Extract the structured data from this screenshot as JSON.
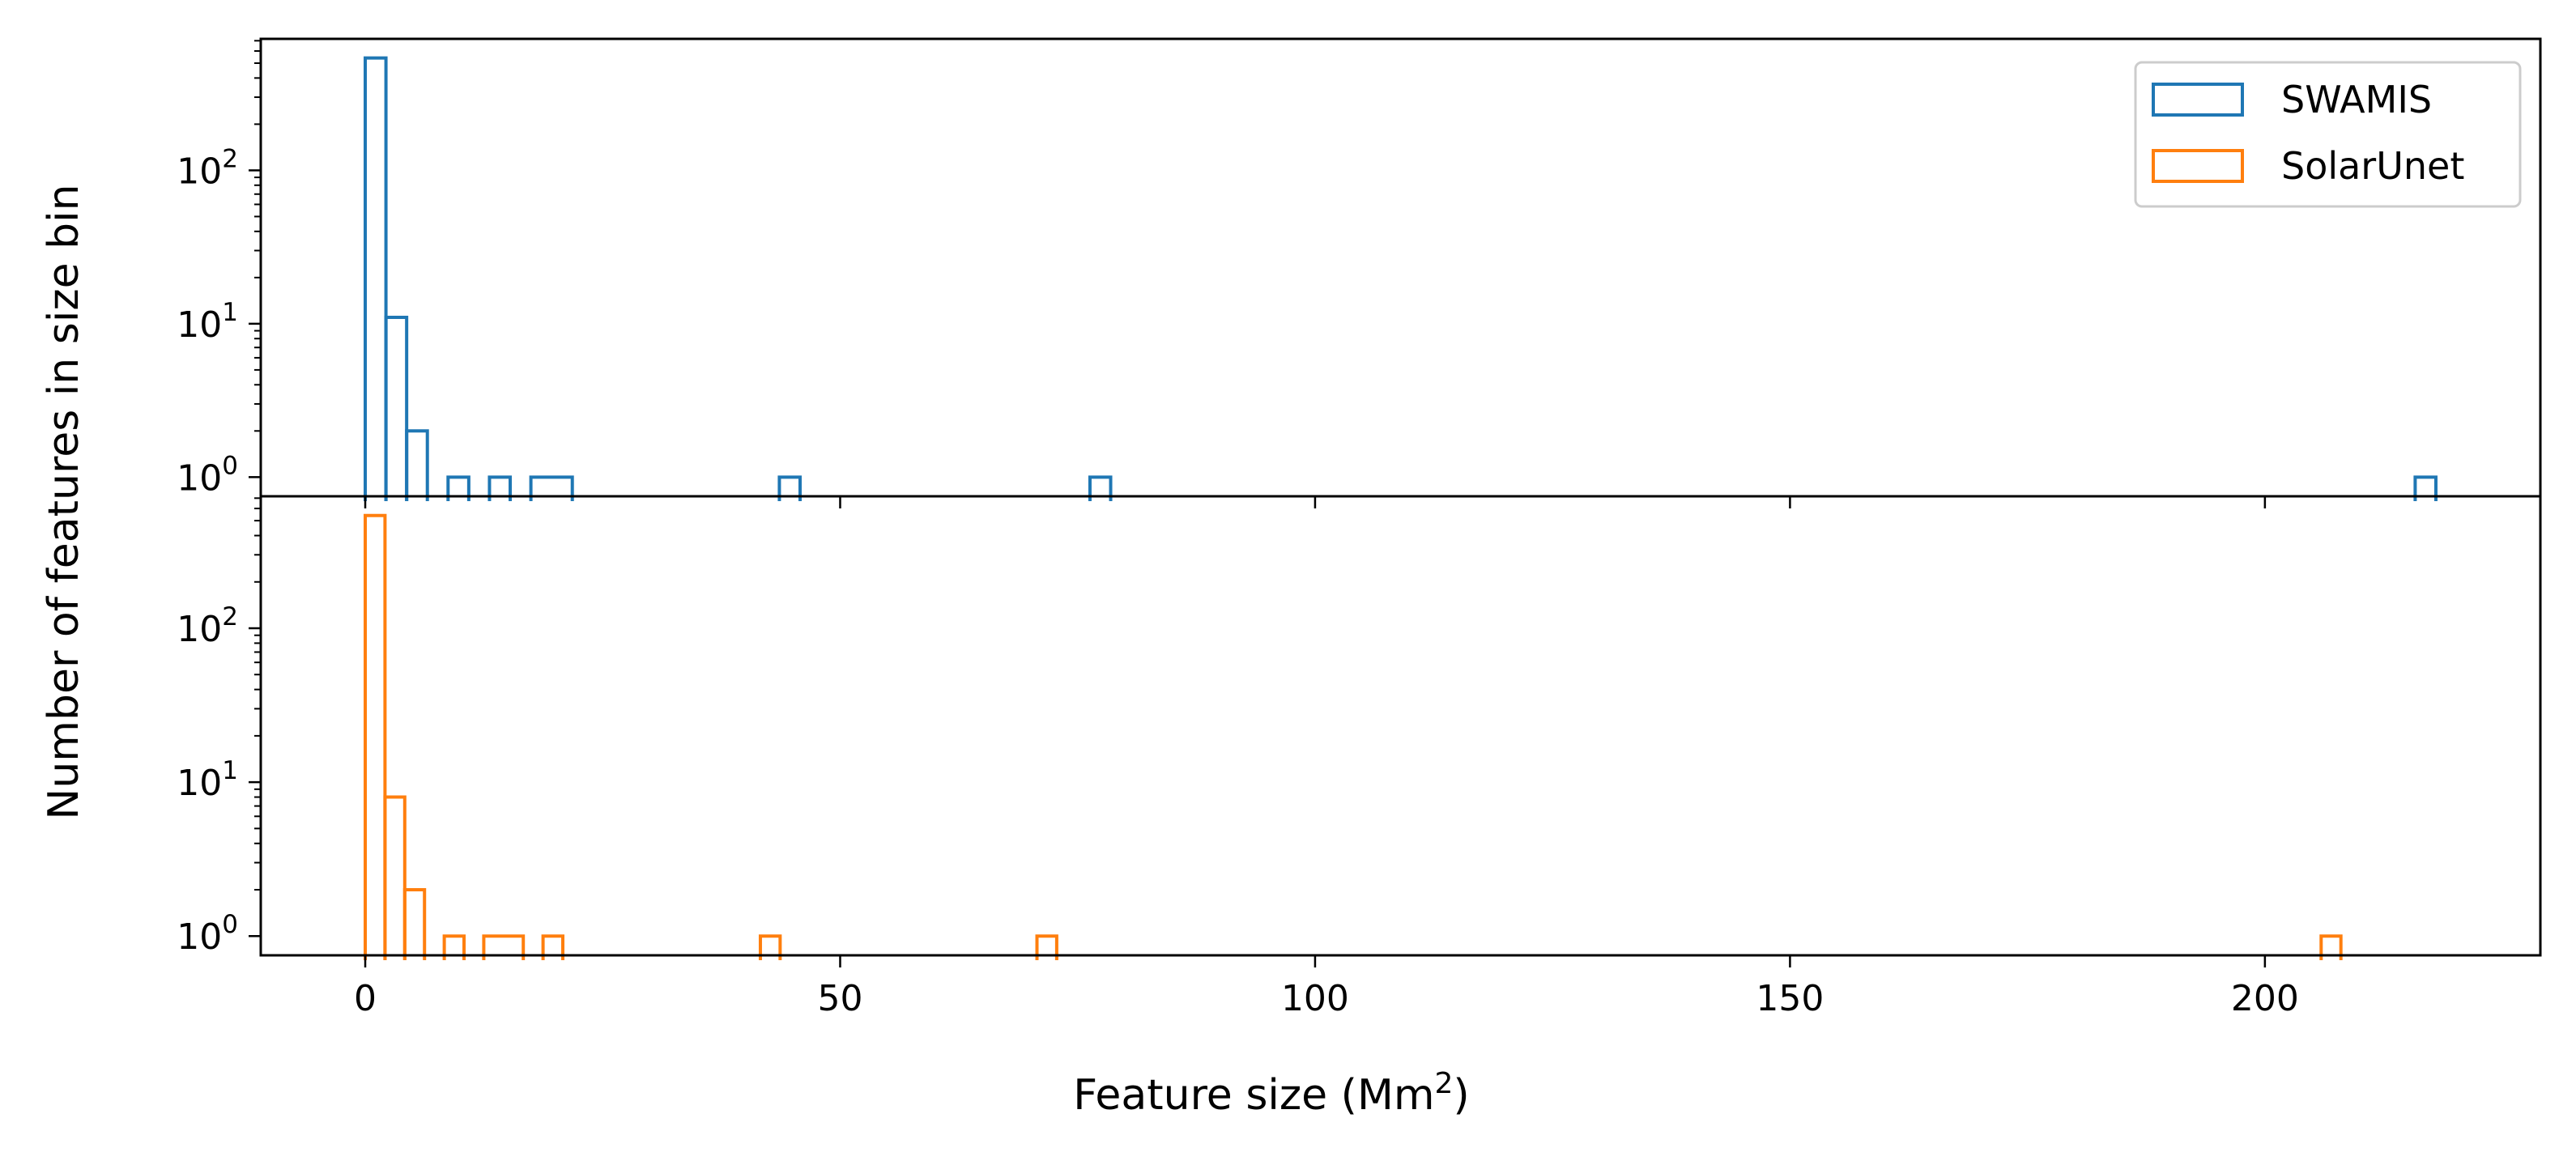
{
  "chart_data": {
    "type": "histogram",
    "layout": "two vertically stacked panels sharing the x axis",
    "xlabel": "Feature size (Mm",
    "xlabel_sup": "2",
    "xlabel_suffix": ")",
    "ylabel": "Number of features in size bin",
    "xlim": [
      -11,
      229
    ],
    "ylim": [
      0.75,
      720
    ],
    "yscale": "log",
    "x_ticks": [
      {
        "value": 0,
        "label": "0"
      },
      {
        "value": 50,
        "label": "50"
      },
      {
        "value": 100,
        "label": "100"
      },
      {
        "value": 150,
        "label": "150"
      },
      {
        "value": 200,
        "label": "200"
      }
    ],
    "y_ticks": [
      {
        "value": 1,
        "base": "10",
        "exp": "0"
      },
      {
        "value": 10,
        "base": "10",
        "exp": "1"
      },
      {
        "value": 100,
        "base": "10",
        "exp": "2"
      }
    ],
    "legend": {
      "placement": "top-right"
    },
    "series": [
      {
        "name": "SWAMIS",
        "color": "#1f77b4",
        "panel": "top",
        "style": "step",
        "bins": [
          {
            "x0": 0.0,
            "x1": 2.18,
            "count": 540
          },
          {
            "x0": 2.18,
            "x1": 4.36,
            "count": 11
          },
          {
            "x0": 4.36,
            "x1": 6.54,
            "count": 2
          },
          {
            "x0": 8.72,
            "x1": 10.9,
            "count": 1
          },
          {
            "x0": 13.08,
            "x1": 15.26,
            "count": 1
          },
          {
            "x0": 17.44,
            "x1": 21.8,
            "count": 1
          },
          {
            "x0": 43.6,
            "x1": 45.78,
            "count": 1
          },
          {
            "x0": 76.3,
            "x1": 78.48,
            "count": 1
          },
          {
            "x0": 215.82,
            "x1": 218.0,
            "count": 1
          }
        ]
      },
      {
        "name": "SolarUnet",
        "color": "#ff7f0e",
        "panel": "bottom",
        "style": "step",
        "bins": [
          {
            "x0": 0.0,
            "x1": 2.08,
            "count": 540
          },
          {
            "x0": 2.08,
            "x1": 4.16,
            "count": 8
          },
          {
            "x0": 4.16,
            "x1": 6.24,
            "count": 2
          },
          {
            "x0": 8.32,
            "x1": 10.4,
            "count": 1
          },
          {
            "x0": 12.48,
            "x1": 16.64,
            "count": 1
          },
          {
            "x0": 18.72,
            "x1": 20.8,
            "count": 1
          },
          {
            "x0": 41.6,
            "x1": 43.68,
            "count": 1
          },
          {
            "x0": 70.72,
            "x1": 72.8,
            "count": 1
          },
          {
            "x0": 205.92,
            "x1": 208.0,
            "count": 1
          }
        ]
      }
    ]
  }
}
